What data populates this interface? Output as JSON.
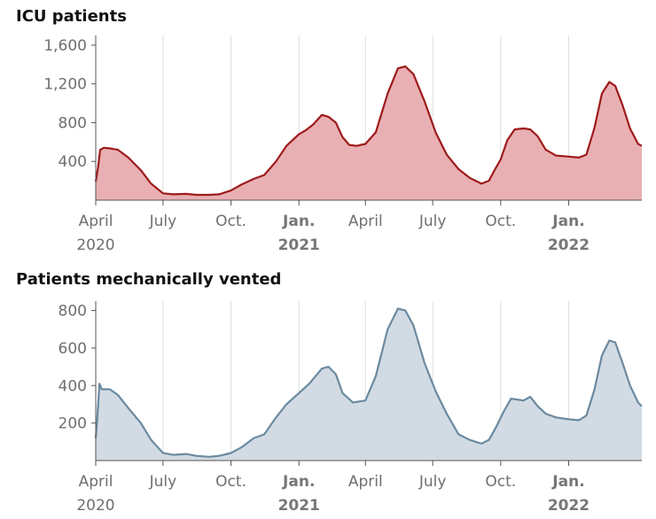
{
  "chart_data": [
    {
      "type": "area",
      "title": "ICU patients",
      "xlabel": "",
      "ylabel": "",
      "x_range": [
        "2020-04-01",
        "2022-04-10"
      ],
      "ylim": [
        0,
        1700
      ],
      "yticks": [
        400,
        800,
        1200,
        1600
      ],
      "ytick_labels": [
        "400",
        "800",
        "1,200",
        "1,600"
      ],
      "grid": "vertical",
      "colors": {
        "line": "#9e1b1b",
        "fill": "#e9b0b4"
      },
      "points": [
        [
          "2020-04-01",
          190
        ],
        [
          "2020-04-04",
          330
        ],
        [
          "2020-04-07",
          520
        ],
        [
          "2020-04-12",
          540
        ],
        [
          "2020-04-20",
          535
        ],
        [
          "2020-05-01",
          520
        ],
        [
          "2020-05-15",
          440
        ],
        [
          "2020-06-01",
          310
        ],
        [
          "2020-06-15",
          170
        ],
        [
          "2020-07-01",
          70
        ],
        [
          "2020-07-15",
          60
        ],
        [
          "2020-08-01",
          65
        ],
        [
          "2020-08-15",
          55
        ],
        [
          "2020-09-01",
          55
        ],
        [
          "2020-09-15",
          60
        ],
        [
          "2020-10-01",
          100
        ],
        [
          "2020-10-15",
          160
        ],
        [
          "2020-11-01",
          220
        ],
        [
          "2020-11-15",
          260
        ],
        [
          "2020-12-01",
          400
        ],
        [
          "2020-12-15",
          560
        ],
        [
          "2021-01-01",
          680
        ],
        [
          "2021-01-10",
          720
        ],
        [
          "2021-01-20",
          780
        ],
        [
          "2021-02-01",
          880
        ],
        [
          "2021-02-10",
          860
        ],
        [
          "2021-02-20",
          800
        ],
        [
          "2021-03-01",
          650
        ],
        [
          "2021-03-10",
          570
        ],
        [
          "2021-03-20",
          560
        ],
        [
          "2021-04-01",
          580
        ],
        [
          "2021-04-15",
          700
        ],
        [
          "2021-05-01",
          1100
        ],
        [
          "2021-05-15",
          1360
        ],
        [
          "2021-05-25",
          1380
        ],
        [
          "2021-06-05",
          1300
        ],
        [
          "2021-06-20",
          1020
        ],
        [
          "2021-07-05",
          700
        ],
        [
          "2021-07-20",
          470
        ],
        [
          "2021-08-05",
          320
        ],
        [
          "2021-08-20",
          230
        ],
        [
          "2021-09-05",
          170
        ],
        [
          "2021-09-15",
          200
        ],
        [
          "2021-09-22",
          300
        ],
        [
          "2021-10-01",
          420
        ],
        [
          "2021-10-10",
          620
        ],
        [
          "2021-10-20",
          730
        ],
        [
          "2021-11-01",
          740
        ],
        [
          "2021-11-10",
          730
        ],
        [
          "2021-11-20",
          660
        ],
        [
          "2021-12-01",
          520
        ],
        [
          "2021-12-15",
          460
        ],
        [
          "2022-01-01",
          450
        ],
        [
          "2022-01-15",
          440
        ],
        [
          "2022-01-25",
          470
        ],
        [
          "2022-02-05",
          750
        ],
        [
          "2022-02-15",
          1100
        ],
        [
          "2022-02-25",
          1220
        ],
        [
          "2022-03-05",
          1180
        ],
        [
          "2022-03-15",
          980
        ],
        [
          "2022-03-25",
          740
        ],
        [
          "2022-04-05",
          580
        ],
        [
          "2022-04-10",
          560
        ]
      ]
    },
    {
      "type": "area",
      "title": "Patients mechanically vented",
      "xlabel": "",
      "ylabel": "",
      "x_range": [
        "2020-04-01",
        "2022-04-10"
      ],
      "ylim": [
        0,
        850
      ],
      "yticks": [
        200,
        400,
        600,
        800
      ],
      "ytick_labels": [
        "200",
        "400",
        "600",
        "800"
      ],
      "grid": "vertical",
      "colors": {
        "line": "#6b8aa0",
        "fill": "#d2dbe3"
      },
      "points": [
        [
          "2020-04-01",
          120
        ],
        [
          "2020-04-03",
          220
        ],
        [
          "2020-04-06",
          410
        ],
        [
          "2020-04-09",
          380
        ],
        [
          "2020-04-20",
          380
        ],
        [
          "2020-05-01",
          350
        ],
        [
          "2020-05-15",
          280
        ],
        [
          "2020-06-01",
          200
        ],
        [
          "2020-06-15",
          110
        ],
        [
          "2020-07-01",
          40
        ],
        [
          "2020-07-15",
          30
        ],
        [
          "2020-08-01",
          35
        ],
        [
          "2020-08-15",
          25
        ],
        [
          "2020-09-01",
          20
        ],
        [
          "2020-09-15",
          25
        ],
        [
          "2020-10-01",
          40
        ],
        [
          "2020-10-15",
          70
        ],
        [
          "2020-11-01",
          120
        ],
        [
          "2020-11-15",
          140
        ],
        [
          "2020-12-01",
          230
        ],
        [
          "2020-12-15",
          300
        ],
        [
          "2021-01-01",
          360
        ],
        [
          "2021-01-15",
          410
        ],
        [
          "2021-02-01",
          490
        ],
        [
          "2021-02-10",
          500
        ],
        [
          "2021-02-20",
          460
        ],
        [
          "2021-03-01",
          360
        ],
        [
          "2021-03-15",
          310
        ],
        [
          "2021-04-01",
          320
        ],
        [
          "2021-04-15",
          450
        ],
        [
          "2021-05-01",
          700
        ],
        [
          "2021-05-15",
          810
        ],
        [
          "2021-05-25",
          800
        ],
        [
          "2021-06-05",
          720
        ],
        [
          "2021-06-20",
          520
        ],
        [
          "2021-07-05",
          370
        ],
        [
          "2021-07-20",
          250
        ],
        [
          "2021-08-05",
          140
        ],
        [
          "2021-08-20",
          110
        ],
        [
          "2021-09-05",
          90
        ],
        [
          "2021-09-15",
          110
        ],
        [
          "2021-09-25",
          180
        ],
        [
          "2021-10-05",
          260
        ],
        [
          "2021-10-15",
          330
        ],
        [
          "2021-11-01",
          320
        ],
        [
          "2021-11-10",
          340
        ],
        [
          "2021-11-20",
          290
        ],
        [
          "2021-12-01",
          250
        ],
        [
          "2021-12-15",
          230
        ],
        [
          "2022-01-01",
          220
        ],
        [
          "2022-01-15",
          215
        ],
        [
          "2022-01-25",
          240
        ],
        [
          "2022-02-05",
          380
        ],
        [
          "2022-02-15",
          560
        ],
        [
          "2022-02-25",
          640
        ],
        [
          "2022-03-05",
          630
        ],
        [
          "2022-03-15",
          520
        ],
        [
          "2022-03-25",
          400
        ],
        [
          "2022-04-05",
          310
        ],
        [
          "2022-04-10",
          290
        ]
      ]
    }
  ],
  "x_axis": {
    "ticks": [
      {
        "date": "2020-04-01",
        "label": "April",
        "year": "2020",
        "bold": false
      },
      {
        "date": "2020-07-01",
        "label": "July",
        "year": "",
        "bold": false
      },
      {
        "date": "2020-10-01",
        "label": "Oct.",
        "year": "",
        "bold": false
      },
      {
        "date": "2021-01-01",
        "label": "Jan.",
        "year": "2021",
        "bold": true
      },
      {
        "date": "2021-04-01",
        "label": "April",
        "year": "",
        "bold": false
      },
      {
        "date": "2021-07-01",
        "label": "July",
        "year": "",
        "bold": false
      },
      {
        "date": "2021-10-01",
        "label": "Oct.",
        "year": "",
        "bold": false
      },
      {
        "date": "2022-01-01",
        "label": "Jan.",
        "year": "2022",
        "bold": true
      }
    ]
  }
}
